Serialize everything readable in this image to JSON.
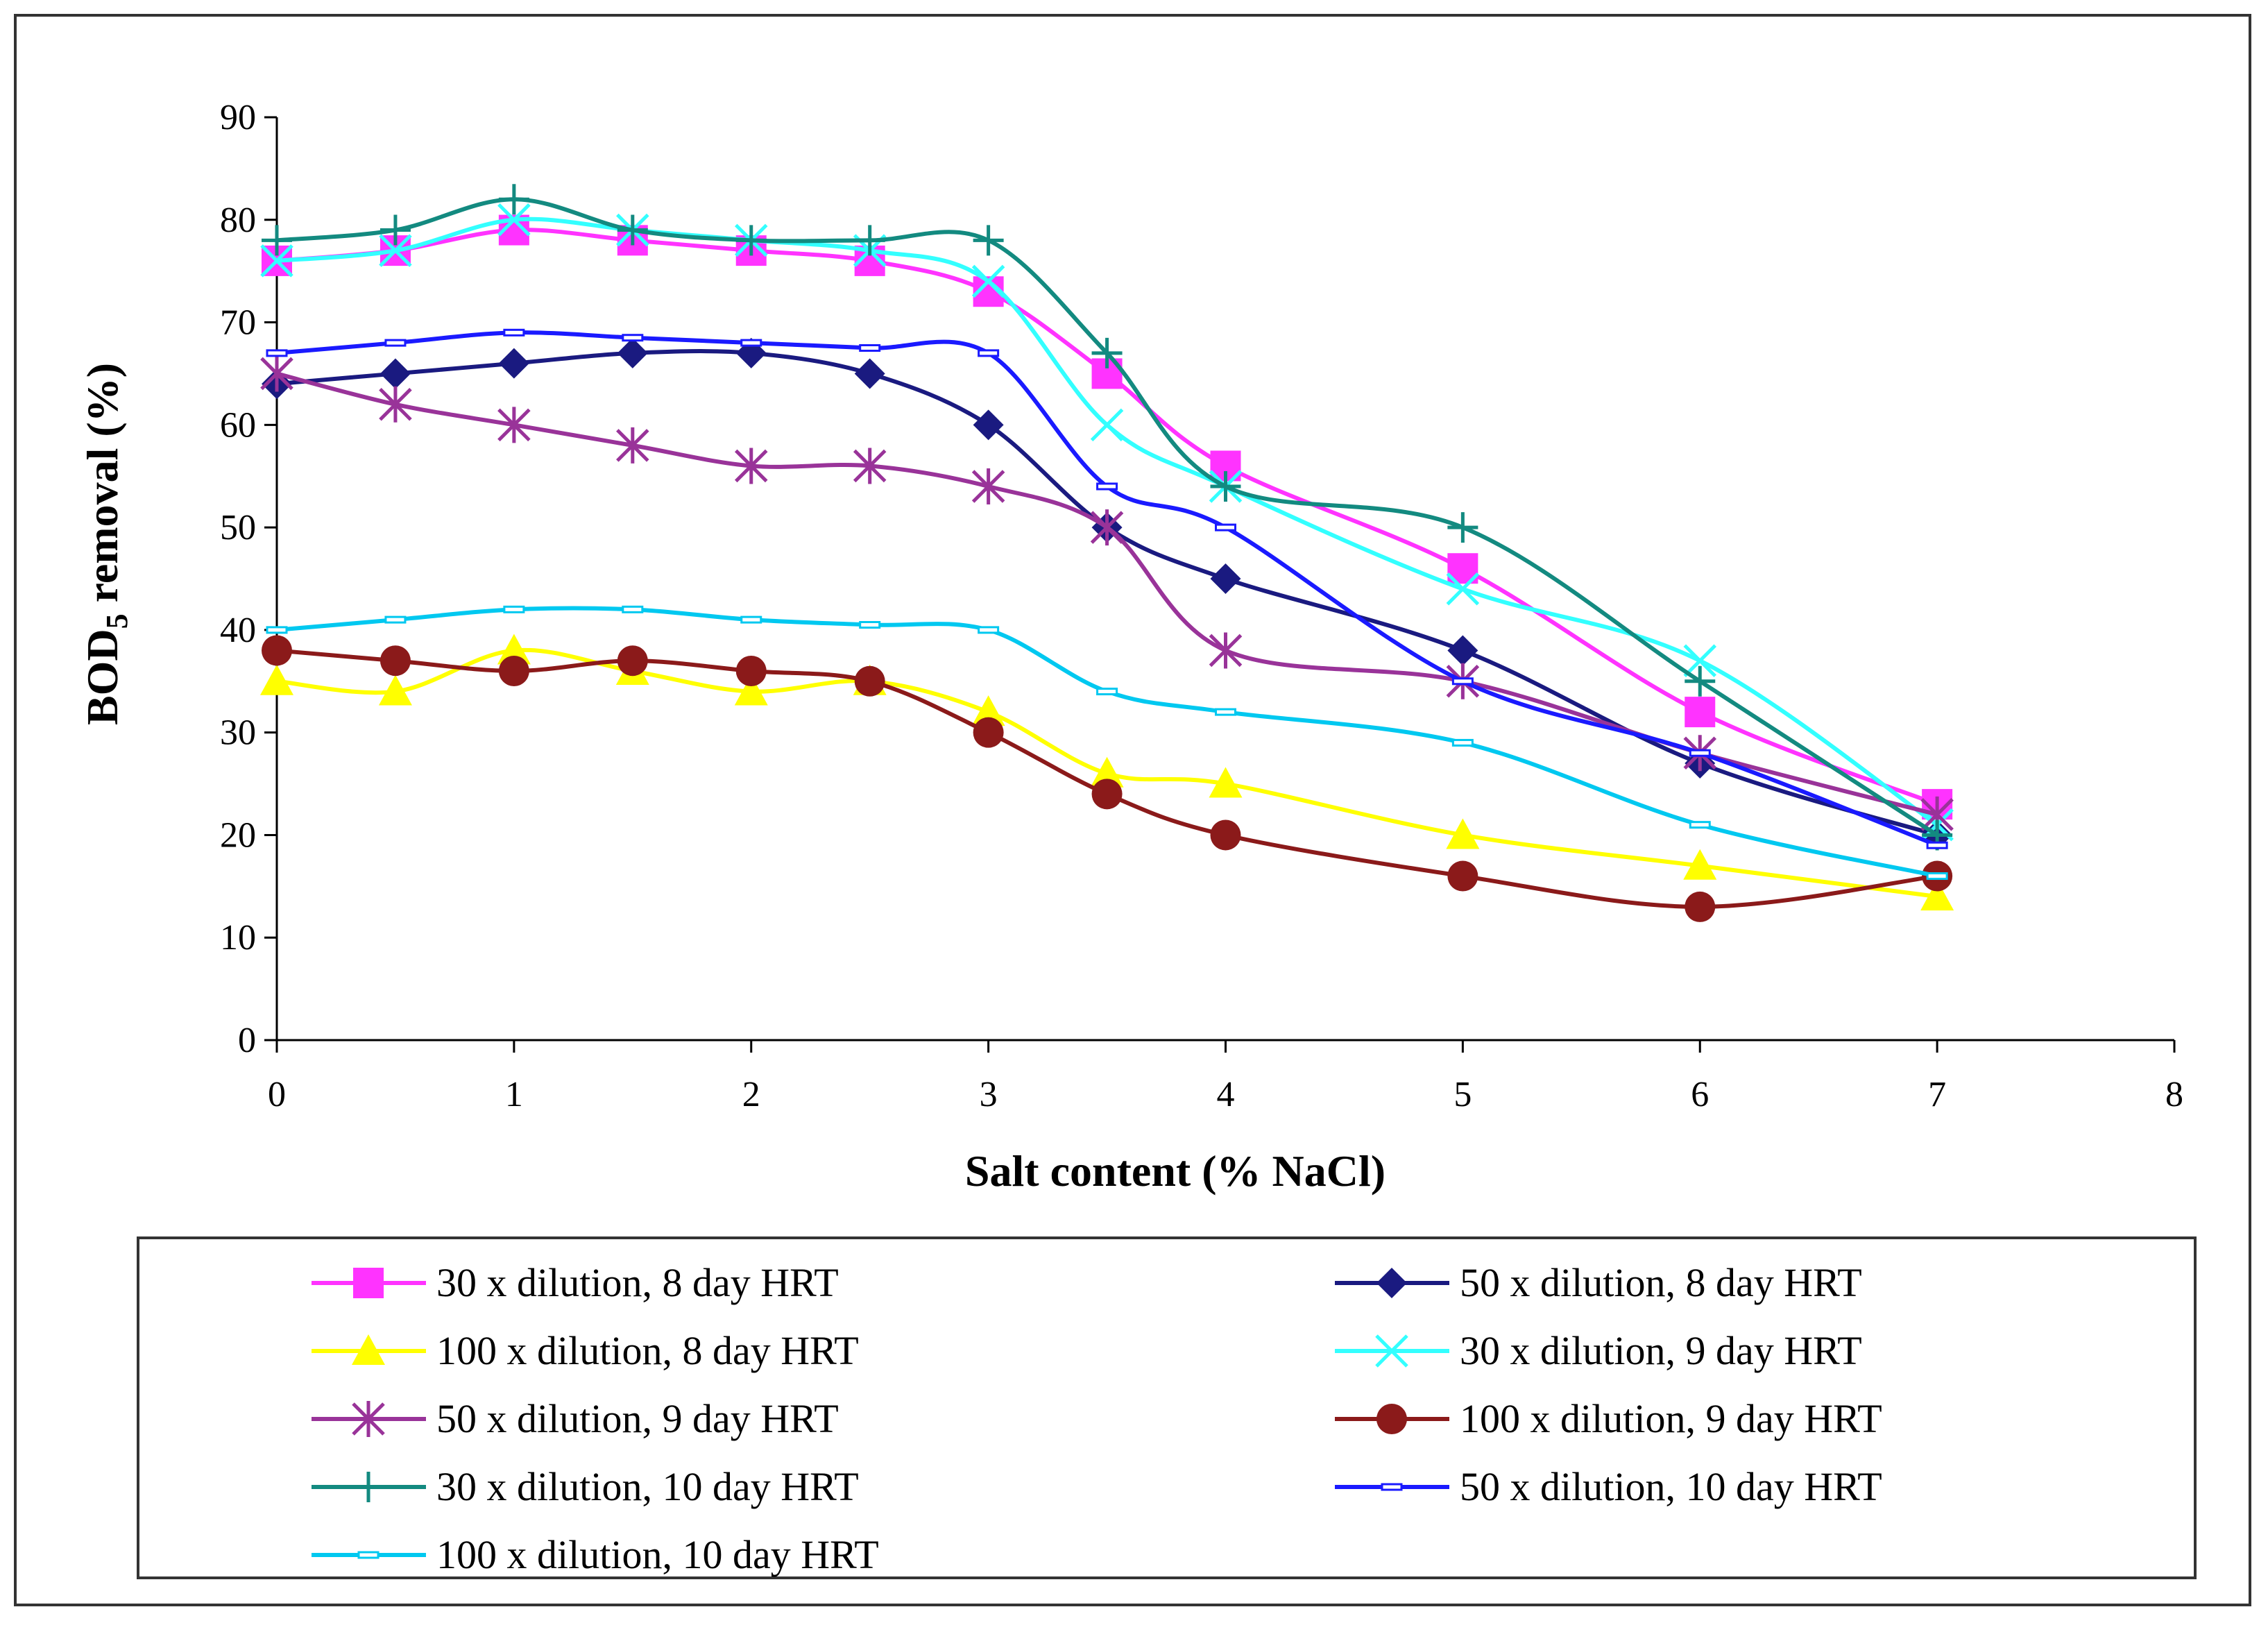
{
  "chart_data": {
    "type": "line",
    "title": "",
    "xlabel": "Salt content (% NaCl)",
    "ylabel_main": "BOD",
    "ylabel_sub": "5",
    "ylabel_rest": " removal (%)",
    "xlim": [
      0,
      8
    ],
    "ylim": [
      0,
      90
    ],
    "xticks": [
      0,
      1,
      2,
      3,
      4,
      5,
      6,
      7,
      8
    ],
    "yticks": [
      0,
      10,
      20,
      30,
      40,
      50,
      60,
      70,
      80,
      90
    ],
    "grid": false,
    "legend_position": "bottom",
    "x": [
      0,
      0.5,
      1,
      1.5,
      2,
      2.5,
      3,
      3.5,
      4,
      5,
      6,
      7
    ],
    "series": [
      {
        "name": "30 x dilution, 8 day HRT",
        "color": "#ff33ff",
        "marker": "square",
        "values": [
          76,
          77,
          79,
          78,
          77,
          76,
          73,
          65,
          56,
          46,
          32,
          23
        ]
      },
      {
        "name": "50 x dilution, 8 day HRT",
        "color": "#1a1a80",
        "marker": "diamond",
        "values": [
          64,
          65,
          66,
          67,
          67,
          65,
          60,
          50,
          45,
          38,
          27,
          20
        ]
      },
      {
        "name": "100 x dilution, 8 day HRT",
        "color": "#ffff00",
        "marker": "triangle",
        "values": [
          35,
          34,
          38,
          36,
          34,
          35,
          32,
          26,
          25,
          20,
          17,
          14
        ]
      },
      {
        "name": "30 x dilution, 9 day HRT",
        "color": "#33ffff",
        "marker": "x",
        "values": [
          76,
          77,
          80,
          79,
          78,
          77,
          74,
          60,
          54,
          44,
          37,
          21
        ]
      },
      {
        "name": "50 x dilution, 9 day HRT",
        "color": "#993399",
        "marker": "star",
        "values": [
          65,
          62,
          60,
          58,
          56,
          56,
          54,
          50,
          38,
          35,
          28,
          22
        ]
      },
      {
        "name": "100 x dilution, 9 day HRT",
        "color": "#8b1a1a",
        "marker": "circle",
        "values": [
          38,
          37,
          36,
          37,
          36,
          35,
          30,
          24,
          20,
          16,
          13,
          16
        ]
      },
      {
        "name": "30 x dilution, 10 day HRT",
        "color": "#138a80",
        "marker": "plus",
        "values": [
          78,
          79,
          82,
          79,
          78,
          78,
          78,
          67,
          54,
          50,
          35,
          20
        ]
      },
      {
        "name": "50 x dilution, 10 day HRT",
        "color": "#1a1aff",
        "marker": "dash",
        "values": [
          67,
          68,
          69,
          68.5,
          68,
          67.5,
          67,
          54,
          50,
          35,
          28,
          19
        ]
      },
      {
        "name": "100 x dilution, 10 day HRT",
        "color": "#00c8f0",
        "marker": "dash",
        "values": [
          40,
          41,
          42,
          42,
          41,
          40.5,
          40,
          34,
          32,
          29,
          21,
          16
        ]
      }
    ]
  }
}
